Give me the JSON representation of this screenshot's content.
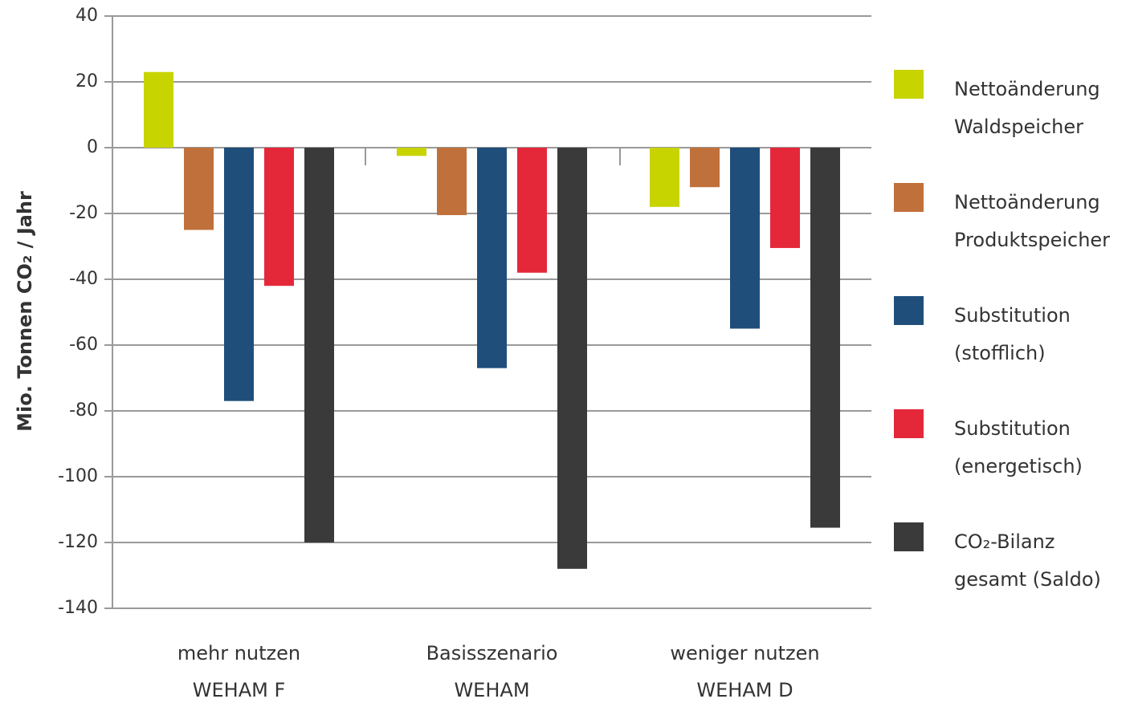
{
  "chart_data": {
    "type": "bar",
    "ylabel": "Mio. Tonnen CO₂ / Jahr",
    "categories": [
      [
        "mehr nutzen",
        "WEHAM F"
      ],
      [
        "Basisszenario",
        "WEHAM"
      ],
      [
        "weniger nutzen",
        "WEHAM D"
      ]
    ],
    "series": [
      {
        "name": "Nettoänderung Waldspeicher",
        "color": "#c8d400",
        "values": [
          23,
          -2.5,
          -18
        ]
      },
      {
        "name": "Nettoänderung Produktspeicher",
        "color": "#c0703a",
        "values": [
          -25,
          -20.5,
          -12
        ]
      },
      {
        "name": "Substitution (stofflich)",
        "color": "#1f4e7a",
        "values": [
          -77,
          -67,
          -55
        ]
      },
      {
        "name": "Substitution (energetisch)",
        "color": "#e4283a",
        "values": [
          -42,
          -38,
          -30.5
        ]
      },
      {
        "name": "CO₂-Bilanz gesamt (Saldo)",
        "color": "#3a3a3a",
        "values": [
          -120,
          -128,
          -115.5
        ]
      }
    ],
    "ylim": [
      -140,
      40
    ],
    "yticks": [
      -140,
      -120,
      -100,
      -80,
      -60,
      -40,
      -20,
      0,
      20,
      40
    ],
    "grid": true,
    "legend": "right"
  }
}
